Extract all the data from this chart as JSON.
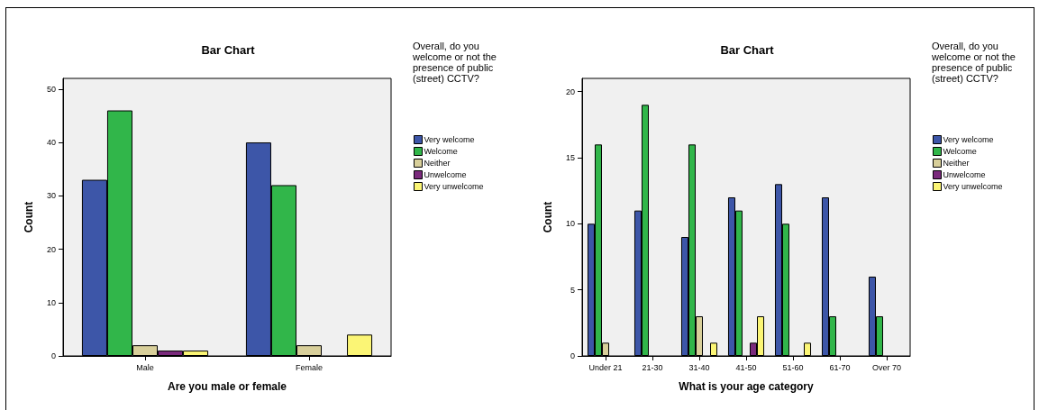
{
  "chart_data": [
    {
      "type": "bar",
      "title": "Bar Chart",
      "xlabel": "Are you male or female",
      "ylabel": "Count",
      "legend_title": "Overall, do you welcome or not the presence of public (street) CCTV?",
      "legend": "right",
      "grid": false,
      "categories": [
        "Male",
        "Female"
      ],
      "ylim": [
        0,
        52
      ],
      "yticks": [
        0,
        10,
        20,
        30,
        40,
        50
      ],
      "series": [
        {
          "name": "Very welcome",
          "color": "#3d56a8",
          "values": [
            33,
            40
          ]
        },
        {
          "name": "Welcome",
          "color": "#31b64a",
          "values": [
            46,
            32
          ]
        },
        {
          "name": "Neither",
          "color": "#d8cf9a",
          "values": [
            2,
            2
          ]
        },
        {
          "name": "Unwelcome",
          "color": "#7a2a7c",
          "values": [
            1,
            0
          ]
        },
        {
          "name": "Very unwelcome",
          "color": "#fbf575",
          "values": [
            1,
            4
          ]
        }
      ]
    },
    {
      "type": "bar",
      "title": "Bar Chart",
      "xlabel": "What is your age category",
      "ylabel": "Count",
      "legend_title": "Overall, do you welcome or not the presence of public (street) CCTV?",
      "legend": "right",
      "grid": false,
      "categories": [
        "Under 21",
        "21-30",
        "31-40",
        "41-50",
        "51-60",
        "61-70",
        "Over 70"
      ],
      "ylim": [
        0,
        21
      ],
      "yticks": [
        0,
        5,
        10,
        15,
        20
      ],
      "series": [
        {
          "name": "Very welcome",
          "color": "#3d56a8",
          "values": [
            10,
            11,
            9,
            12,
            13,
            12,
            6
          ]
        },
        {
          "name": "Welcome",
          "color": "#31b64a",
          "values": [
            16,
            19,
            16,
            11,
            10,
            3,
            3
          ]
        },
        {
          "name": "Neither",
          "color": "#d8cf9a",
          "values": [
            1,
            0,
            3,
            0,
            0,
            0,
            0
          ]
        },
        {
          "name": "Unwelcome",
          "color": "#7a2a7c",
          "values": [
            0,
            0,
            0,
            1,
            0,
            0,
            0
          ]
        },
        {
          "name": "Very unwelcome",
          "color": "#fbf575",
          "values": [
            0,
            0,
            1,
            3,
            1,
            0,
            0
          ]
        }
      ]
    }
  ]
}
